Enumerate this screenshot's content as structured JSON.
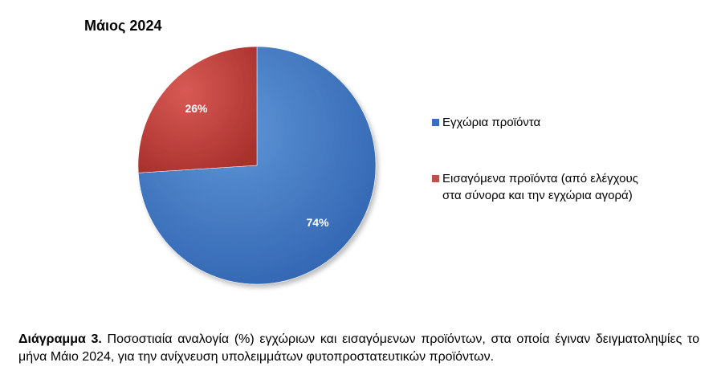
{
  "chart_data": {
    "type": "pie",
    "title": "Μάιος 2024",
    "categories": [
      "Εγχώρια προϊόντα",
      "Εισαγόμενα προϊόντα (από ελέγχους στα σύνορα και την εγχώρια αγορά)"
    ],
    "values": [
      74,
      26
    ],
    "data_labels": [
      "74%",
      "26%"
    ],
    "colors": [
      "#4F81BD",
      "#C0504D"
    ],
    "legend_position": "right"
  },
  "caption": {
    "label": "Διάγραμμα 3.",
    "text": "Ποσοστιαία αναλογία (%) εγχώριων και εισαγόμενων προϊόντων, στα οποία έγιναν δειγματοληψίες το μήνα Μάιο 2024, για την ανίχνευση υπολειμμάτων φυτοπροστατευτικών προϊόντων."
  }
}
